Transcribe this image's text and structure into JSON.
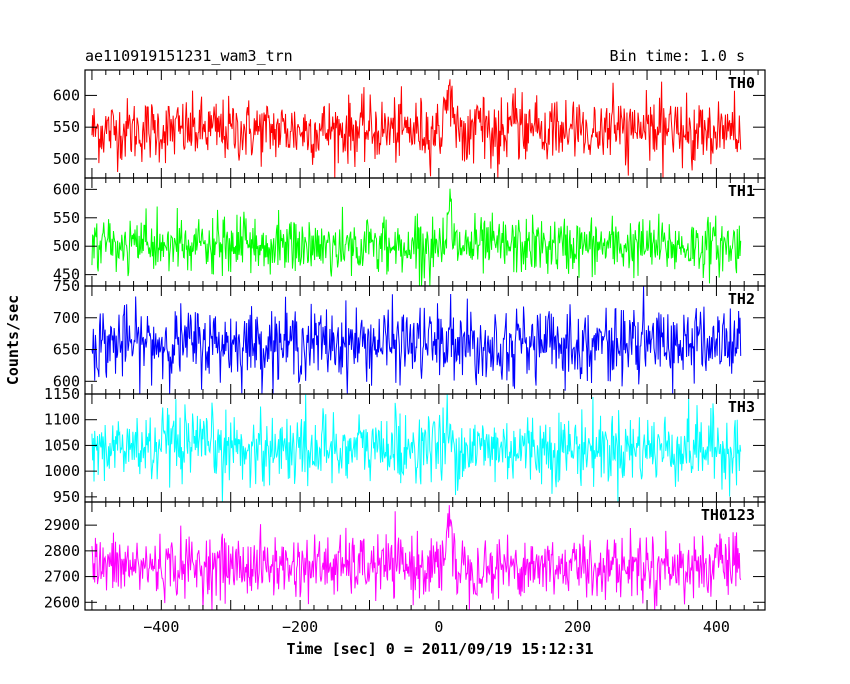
{
  "chart_data": {
    "type": "line",
    "title": "ae110919151231_wam3_trn",
    "subtitle": "Bin time: 1.0 s",
    "xlabel": "Time [sec] 0 = 2011/09/19 15:12:31",
    "ylabel": "Counts/sec",
    "xlim": [
      -510,
      470
    ],
    "x_ticks": [
      -400,
      -200,
      0,
      200,
      400
    ],
    "x_tick_labels": [
      "−400",
      "−200",
      "0",
      "200",
      "400"
    ],
    "x_range_data": [
      -500,
      435
    ],
    "burst_time": 15,
    "panels": [
      {
        "name": "TH0",
        "color": "#ff0000",
        "ylim": [
          470,
          640
        ],
        "yticks": [
          500,
          550,
          600
        ],
        "mean": 545,
        "sd": 25,
        "burst": 60
      },
      {
        "name": "TH1",
        "color": "#00ff00",
        "ylim": [
          430,
          620
        ],
        "yticks": [
          450,
          500,
          550,
          600
        ],
        "mean": 500,
        "sd": 25,
        "burst": 70
      },
      {
        "name": "TH2",
        "color": "#0000ff",
        "ylim": [
          580,
          750
        ],
        "yticks": [
          600,
          650,
          700,
          750
        ],
        "mean": 660,
        "sd": 28,
        "burst": 40
      },
      {
        "name": "TH3",
        "color": "#00ffff",
        "ylim": [
          940,
          1150
        ],
        "yticks": [
          950,
          1000,
          1050,
          1100,
          1150
        ],
        "mean": 1045,
        "sd": 35,
        "burst": 60
      },
      {
        "name": "TH0123",
        "color": "#ff00ff",
        "ylim": [
          2570,
          2990
        ],
        "yticks": [
          2600,
          2700,
          2800,
          2900
        ],
        "mean": 2740,
        "sd": 60,
        "burst": 200
      }
    ]
  }
}
